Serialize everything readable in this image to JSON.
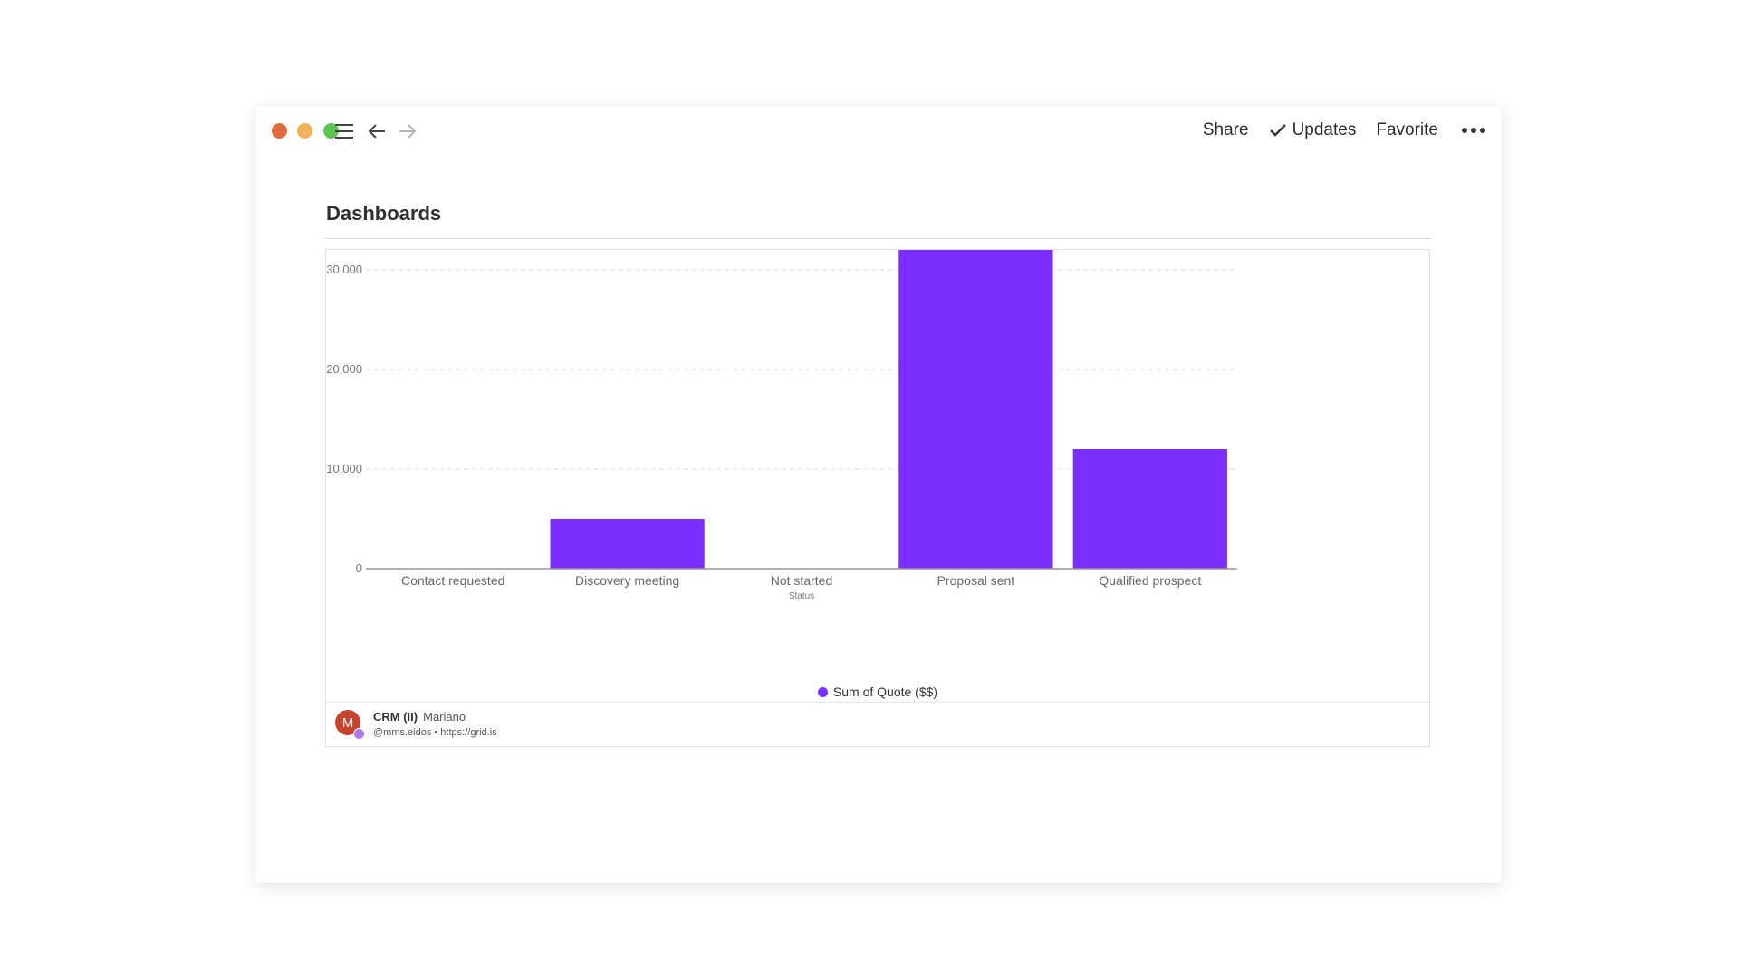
{
  "titlebar": {
    "traffic_lights": {
      "close_color": "#e06c3c",
      "minimize_color": "#f0b35a",
      "maximize_color": "#5ec254"
    },
    "menu_icon": "hamburger-menu-icon",
    "back_icon": "arrow-left-icon",
    "forward_icon": "arrow-right-icon",
    "share_label": "Share",
    "updates_label": "Updates",
    "favorite_label": "Favorite",
    "more_icon": "more-dots-icon"
  },
  "page": {
    "title": "Dashboards"
  },
  "chart_data": {
    "type": "bar",
    "categories": [
      "Contact requested",
      "Discovery meeting",
      "Not started",
      "Proposal sent",
      "Qualified prospect"
    ],
    "series": [
      {
        "name": "Sum of Quote ($$)",
        "values": [
          0,
          5000,
          0,
          32000,
          12000
        ],
        "color": "#7b2fff"
      }
    ],
    "xlabel": "Status",
    "ylabel": "",
    "ylim": [
      0,
      32000
    ],
    "yticks": [
      0,
      10000,
      20000,
      30000
    ],
    "ytick_labels": [
      "0",
      "10,000",
      "20,000",
      "30,000"
    ],
    "grid": true,
    "legend_position": "bottom"
  },
  "footer": {
    "avatar_initial": "M",
    "doc_name": "CRM (II)",
    "owner": "Mariano",
    "meta": "@mms.eidos • https://grid.is"
  }
}
